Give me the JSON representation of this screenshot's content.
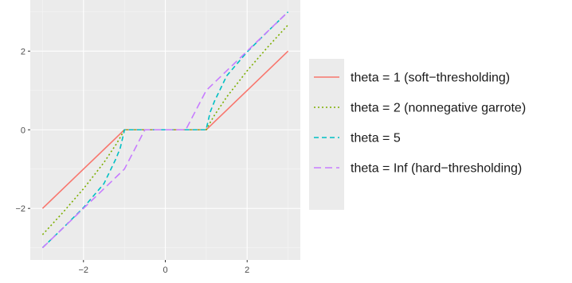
{
  "chart_data": {
    "type": "line",
    "title": "",
    "xlabel": "",
    "ylabel": "",
    "xlim": [
      -3.0,
      3.0
    ],
    "ylim": [
      -3.0,
      3.0
    ],
    "x_ticks": [
      -2,
      0,
      2
    ],
    "y_ticks": [
      -2,
      0,
      2
    ],
    "grid": true,
    "legend_position": "right",
    "x": [
      -3.0,
      -2.5,
      -2.0,
      -1.5,
      -1.2,
      -1.1,
      -1.01,
      -1.0,
      -0.5,
      0.0,
      0.5,
      1.0,
      1.01,
      1.1,
      1.2,
      1.5,
      2.0,
      2.5,
      3.0
    ],
    "series": [
      {
        "name": "theta = 1 (soft−thresholding)",
        "color": "#F8766D",
        "dash": "solid",
        "values": [
          -2.0,
          -1.5,
          -1.0,
          -0.5,
          -0.2,
          -0.1,
          -0.01,
          0,
          0,
          0,
          0,
          0,
          0.01,
          0.1,
          0.2,
          0.5,
          1.0,
          1.5,
          2.0
        ]
      },
      {
        "name": "theta = 2 (nonnegative garrote)",
        "color": "#7CAE00",
        "dash": "dotted",
        "values": [
          -2.667,
          -2.1,
          -1.5,
          -0.833,
          -0.367,
          -0.191,
          -0.02,
          0,
          0,
          0,
          0,
          0,
          0.02,
          0.191,
          0.367,
          0.833,
          1.5,
          2.1,
          2.667
        ]
      },
      {
        "name": "theta = 5",
        "color": "#00BFC4",
        "dash": "dashed",
        "values": [
          -2.999,
          -2.497,
          -1.98,
          -1.371,
          -0.722,
          -0.459,
          -0.063,
          0,
          0,
          0,
          0,
          0,
          0.063,
          0.459,
          0.722,
          1.371,
          1.98,
          2.497,
          2.999
        ]
      },
      {
        "name": "theta = Inf (hard−thresholding)",
        "color": "#C77CFF",
        "dash": "longdash",
        "values": [
          -3.0,
          -2.5,
          -2.0,
          -1.5,
          -1.2,
          -1.1,
          -1.01,
          -1.0,
          0,
          0,
          0,
          1.0,
          1.01,
          1.1,
          1.2,
          1.5,
          2.0,
          2.5,
          3.0
        ]
      }
    ]
  }
}
